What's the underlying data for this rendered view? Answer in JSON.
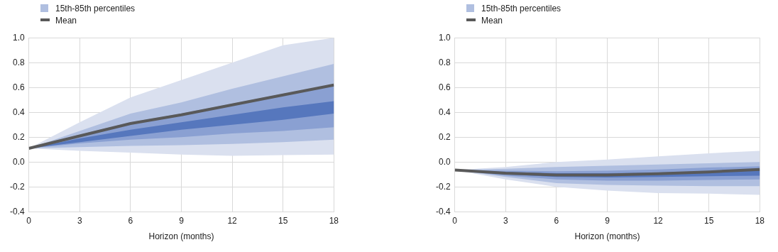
{
  "chart_data": [
    {
      "type": "line",
      "xlabel": "Horizon (months)",
      "x": [
        0,
        3,
        6,
        9,
        12,
        15,
        18
      ],
      "xlim": [
        0,
        18
      ],
      "xticks": [
        0,
        3,
        6,
        9,
        12,
        15,
        18
      ],
      "ylim": [
        -0.4,
        1.0
      ],
      "yticks": [
        {
          "value": -0.4,
          "label": "-0.4"
        },
        {
          "value": -0.2,
          "label": "-0.2"
        },
        {
          "value": 0,
          "label": "0.0"
        },
        {
          "value": 0.2,
          "label": "0.2"
        },
        {
          "value": 0.4,
          "label": "0.4"
        },
        {
          "value": 0.6,
          "label": "0.6"
        },
        {
          "value": 0.8,
          "label": "0.8"
        },
        {
          "value": 1.0,
          "label": "1.0"
        }
      ],
      "grid": true,
      "legend": "top left",
      "marker": "none",
      "series": [
        {
          "type": "line",
          "color": "#dae0ef",
          "values": [
            null,
            null,
            null,
            null,
            null,
            null,
            null
          ],
          "lower": [
            0.11,
            0.09,
            0.075,
            0.06,
            0.05,
            0.055,
            0.06
          ],
          "upper": [
            0.11,
            0.32,
            0.52,
            0.66,
            0.8,
            0.94,
            1.0
          ]
        },
        {
          "type": "line",
          "name": "15th-85th percentiles",
          "color": "#b0bfe0",
          "values": [
            null,
            null,
            null,
            null,
            null,
            null,
            null
          ],
          "lower": [
            0.11,
            0.12,
            0.13,
            0.135,
            0.145,
            0.16,
            0.18
          ],
          "upper": [
            0.11,
            0.25,
            0.39,
            0.48,
            0.59,
            0.69,
            0.79
          ]
        },
        {
          "type": "line",
          "color": "#8aa0d2",
          "values": [
            null,
            null,
            null,
            null,
            null,
            null,
            null
          ],
          "lower": [
            0.11,
            0.15,
            0.18,
            0.2,
            0.23,
            0.25,
            0.28
          ],
          "upper": [
            0.11,
            0.22,
            0.32,
            0.39,
            0.47,
            0.55,
            0.62
          ]
        },
        {
          "type": "line",
          "color": "#5677bd",
          "values": [
            null,
            null,
            null,
            null,
            null,
            null,
            null
          ],
          "lower": [
            0.11,
            0.16,
            0.21,
            0.26,
            0.3,
            0.34,
            0.39
          ],
          "upper": [
            0.11,
            0.19,
            0.26,
            0.32,
            0.38,
            0.44,
            0.49
          ]
        },
        {
          "type": "line",
          "name": "Mean",
          "color": "#595959",
          "values": [
            0.11,
            0.21,
            0.31,
            0.38,
            0.46,
            0.54,
            0.62
          ]
        }
      ]
    },
    {
      "type": "line",
      "xlabel": "Horizon (months)",
      "x": [
        0,
        3,
        6,
        9,
        12,
        15,
        18
      ],
      "xlim": [
        0,
        18
      ],
      "xticks": [
        0,
        3,
        6,
        9,
        12,
        15,
        18
      ],
      "ylim": [
        -0.4,
        1.0
      ],
      "yticks": [
        {
          "value": -0.4,
          "label": "-0.4"
        },
        {
          "value": -0.2,
          "label": "-0.2"
        },
        {
          "value": 0,
          "label": "0.0"
        },
        {
          "value": 0.2,
          "label": "0.2"
        },
        {
          "value": 0.4,
          "label": "0.4"
        },
        {
          "value": 0.6,
          "label": "0.6"
        },
        {
          "value": 0.8,
          "label": "0.8"
        },
        {
          "value": 1.0,
          "label": "1.0"
        }
      ],
      "grid": true,
      "legend": "top left",
      "marker": "none",
      "series": [
        {
          "type": "line",
          "color": "#dae0ef",
          "values": [
            null,
            null,
            null,
            null,
            null,
            null,
            null
          ],
          "lower": [
            -0.065,
            -0.14,
            -0.2,
            -0.23,
            -0.25,
            -0.255,
            -0.265
          ],
          "upper": [
            -0.065,
            -0.04,
            0.0,
            0.02,
            0.045,
            0.07,
            0.09
          ]
        },
        {
          "type": "line",
          "name": "15th-85th percentiles",
          "color": "#b0bfe0",
          "values": [
            null,
            null,
            null,
            null,
            null,
            null,
            null
          ],
          "lower": [
            -0.065,
            -0.12,
            -0.17,
            -0.185,
            -0.19,
            -0.195,
            -0.195
          ],
          "upper": [
            -0.065,
            -0.055,
            -0.04,
            -0.03,
            -0.02,
            -0.01,
            0.0
          ]
        },
        {
          "type": "line",
          "color": "#8aa0d2",
          "values": [
            null,
            null,
            null,
            null,
            null,
            null,
            null
          ],
          "lower": [
            -0.065,
            -0.11,
            -0.14,
            -0.15,
            -0.15,
            -0.145,
            -0.14
          ],
          "upper": [
            -0.065,
            -0.07,
            -0.075,
            -0.07,
            -0.06,
            -0.045,
            -0.035
          ]
        },
        {
          "type": "line",
          "color": "#5677bd",
          "values": [
            null,
            null,
            null,
            null,
            null,
            null,
            null
          ],
          "lower": [
            -0.065,
            -0.1,
            -0.12,
            -0.125,
            -0.12,
            -0.115,
            -0.11
          ],
          "upper": [
            -0.065,
            -0.08,
            -0.09,
            -0.09,
            -0.085,
            -0.075,
            -0.065
          ]
        },
        {
          "type": "line",
          "name": "Mean",
          "color": "#595959",
          "values": [
            -0.065,
            -0.09,
            -0.105,
            -0.105,
            -0.095,
            -0.08,
            -0.06
          ]
        }
      ]
    }
  ]
}
